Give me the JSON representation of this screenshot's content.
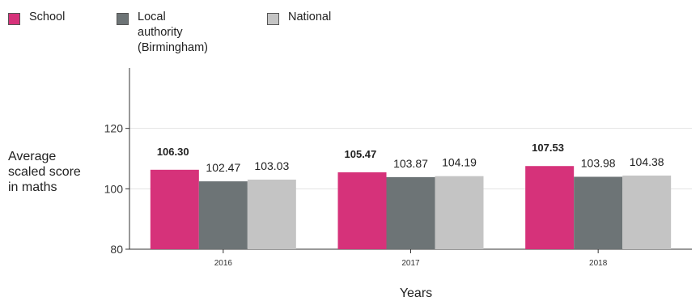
{
  "chart_data": {
    "type": "bar",
    "title": "",
    "xlabel": "Years",
    "ylabel": "Average\nscaled score\nin maths",
    "categories": [
      "2016",
      "2017",
      "2018"
    ],
    "series": [
      {
        "name": "School",
        "values": [
          106.3,
          105.47,
          107.53
        ],
        "labels": [
          "106.30",
          "105.47",
          "107.53"
        ],
        "color": "#d6327a",
        "label_bold": true
      },
      {
        "name": "Local authority\n(Birmingham)",
        "values": [
          102.47,
          103.87,
          103.98
        ],
        "labels": [
          "102.47",
          "103.87",
          "103.98"
        ],
        "color": "#6d7476",
        "label_bold": false
      },
      {
        "name": "National",
        "values": [
          103.03,
          104.19,
          104.38
        ],
        "labels": [
          "103.03",
          "104.19",
          "104.38"
        ],
        "color": "#c4c4c4",
        "label_bold": false
      }
    ],
    "yticks": [
      "80",
      "100",
      "120"
    ],
    "ylim": [
      80,
      140
    ],
    "grid": true,
    "legend_position": "top-left"
  }
}
